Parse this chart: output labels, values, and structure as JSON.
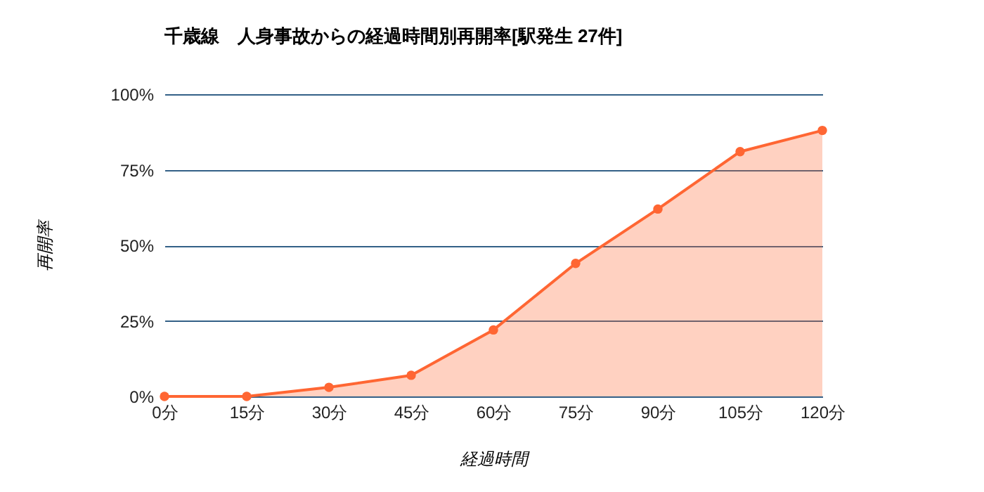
{
  "chart_data": {
    "type": "area",
    "title": "千歳線　人身事故からの経過時間別再開率[駅発生 27件]",
    "xlabel": "経過時間",
    "ylabel": "再開率",
    "categories": [
      "0分",
      "15分",
      "30分",
      "45分",
      "60分",
      "75分",
      "90分",
      "105分",
      "120分"
    ],
    "series": [
      {
        "color": "#ff6633",
        "values": [
          0,
          0,
          3,
          7,
          22,
          44,
          62,
          81,
          88
        ]
      }
    ],
    "ylim": [
      0,
      100
    ],
    "yticks": [
      {
        "value": 0,
        "label": "0%"
      },
      {
        "value": 25,
        "label": "25%"
      },
      {
        "value": 50,
        "label": "50%"
      },
      {
        "value": 75,
        "label": "75%"
      },
      {
        "value": 100,
        "label": "100%"
      }
    ],
    "grid": "y",
    "marker": "circle",
    "legend": false
  }
}
